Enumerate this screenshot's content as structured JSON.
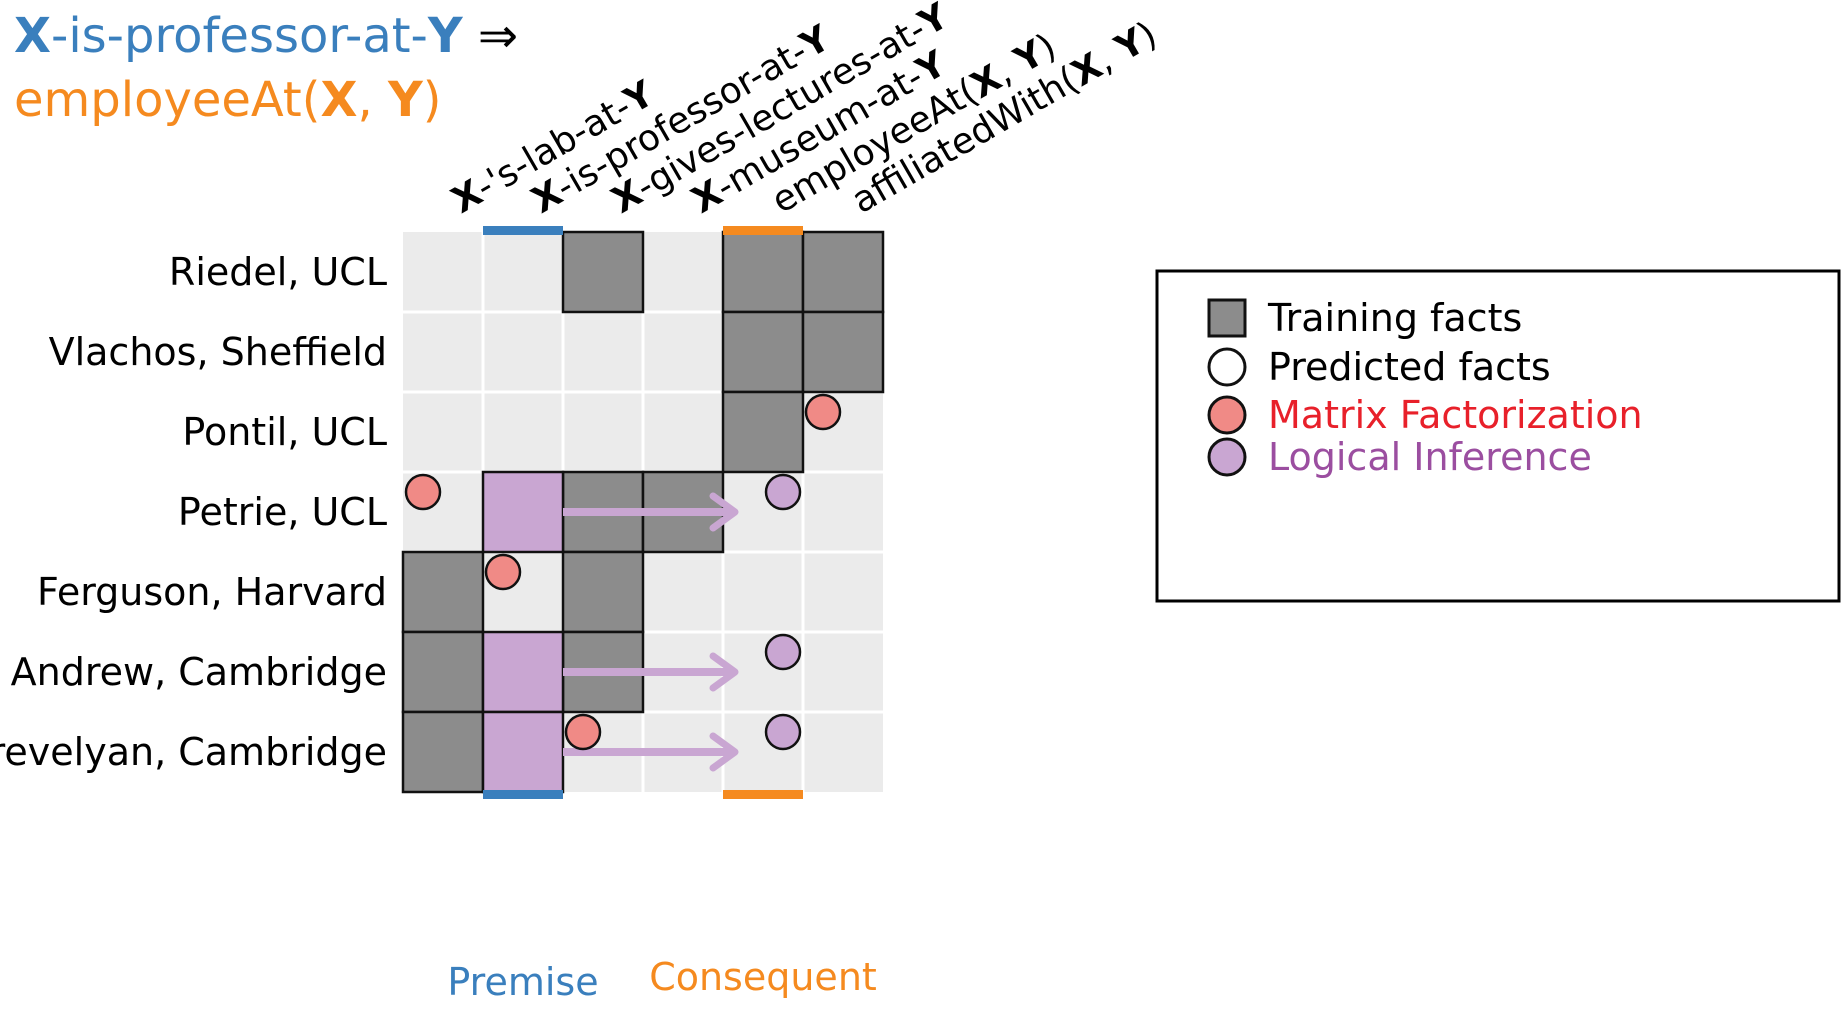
{
  "rule": {
    "line1": [
      {
        "text": "X",
        "style": "blue-bold"
      },
      {
        "text": "-is-professor-at-",
        "style": "blue"
      },
      {
        "text": "Y",
        "style": "blue-bold"
      },
      {
        "text": " ⇒",
        "style": "black"
      }
    ],
    "line2": [
      {
        "text": "employeeAt(",
        "style": "orange"
      },
      {
        "text": "X",
        "style": "orange-bold"
      },
      {
        "text": ", ",
        "style": "orange"
      },
      {
        "text": "Y",
        "style": "orange-bold"
      },
      {
        "text": ")",
        "style": "orange"
      }
    ]
  },
  "columns": [
    [
      {
        "t": "X",
        "b": true
      },
      {
        "t": "-'s-lab-at-",
        "b": false
      },
      {
        "t": "Y",
        "b": true
      }
    ],
    [
      {
        "t": "X",
        "b": true
      },
      {
        "t": "-is-professor-at-",
        "b": false
      },
      {
        "t": "Y",
        "b": true
      }
    ],
    [
      {
        "t": "X",
        "b": true
      },
      {
        "t": "-gives-lectures-at-",
        "b": false
      },
      {
        "t": "Y",
        "b": true
      }
    ],
    [
      {
        "t": "X",
        "b": true
      },
      {
        "t": "-museum-at-",
        "b": false
      },
      {
        "t": "Y",
        "b": true
      }
    ],
    [
      {
        "t": "employeeAt(",
        "b": false
      },
      {
        "t": "X",
        "b": true
      },
      {
        "t": ", ",
        "b": false
      },
      {
        "t": "Y",
        "b": true
      },
      {
        "t": ")",
        "b": false
      }
    ],
    [
      {
        "t": "affiliatedWith(",
        "b": false
      },
      {
        "t": "X",
        "b": true
      },
      {
        "t": ", ",
        "b": false
      },
      {
        "t": "Y",
        "b": true
      },
      {
        "t": ")",
        "b": false
      }
    ]
  ],
  "rows": [
    "Riedel, UCL",
    "Vlachos, Sheffield",
    "Pontil, UCL",
    "Petrie, UCL",
    "Ferguson, Harvard",
    "Andrew, Cambridge",
    "Trevelyan, Cambridge"
  ],
  "matrix": {
    "training_facts": [
      [
        0,
        2
      ],
      [
        0,
        4
      ],
      [
        0,
        5
      ],
      [
        1,
        4
      ],
      [
        1,
        5
      ],
      [
        2,
        4
      ],
      [
        3,
        2
      ],
      [
        3,
        3
      ],
      [
        4,
        0
      ],
      [
        4,
        2
      ],
      [
        5,
        0
      ],
      [
        5,
        2
      ],
      [
        6,
        0
      ]
    ],
    "premise_facts": [
      [
        3,
        1
      ],
      [
        5,
        1
      ],
      [
        6,
        1
      ]
    ],
    "matrix_factorization": [
      [
        2,
        5
      ],
      [
        3,
        0
      ],
      [
        4,
        1
      ],
      [
        6,
        2
      ]
    ],
    "logical_inference": [
      [
        3,
        4
      ],
      [
        5,
        4
      ],
      [
        6,
        4
      ]
    ],
    "inference_arrows": [
      {
        "row": 3,
        "from_col": 1,
        "to_col": 4
      },
      {
        "row": 5,
        "from_col": 1,
        "to_col": 4
      },
      {
        "row": 6,
        "from_col": 1,
        "to_col": 4
      }
    ],
    "premise_column": 1,
    "consequent_column": 4
  },
  "legend": [
    {
      "label": "Training facts",
      "icon": "gray-square-icon",
      "color": "#000000"
    },
    {
      "label": "Predicted facts",
      "icon": "white-circle-icon",
      "color": "#000000"
    },
    {
      "label": "Matrix Factorization",
      "icon": "red-circle-icon",
      "color": "#e8202a"
    },
    {
      "label": "Logical Inference",
      "icon": "purple-circle-icon",
      "color": "#9b4ea0"
    }
  ],
  "bottom_labels": {
    "premise": "Premise",
    "consequent": "Consequent"
  },
  "colors": {
    "blue": "#3a7fbd",
    "orange": "#f58a1f",
    "cell_bg": "#ebebeb",
    "training": "#8c8c8c",
    "premise_fill": "#c9a6d2",
    "mf_fill": "#f08a86",
    "li_fill": "#c9a6d2",
    "arrow": "#c9a6d2",
    "mf_text": "#e8202a",
    "li_text": "#9b4ea0"
  }
}
